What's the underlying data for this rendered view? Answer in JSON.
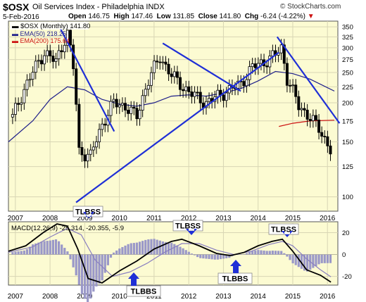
{
  "header": {
    "symbol": "$OSX",
    "name": "Oil Services Index - Philadelphia",
    "exchange": "INDX",
    "date": "5-Feb-2016",
    "open_label": "Open",
    "open": "146.75",
    "high_label": "High",
    "high": "147.46",
    "low_label": "Low",
    "low": "131.85",
    "close_label": "Close",
    "close": "141.80",
    "chg_label": "Chg",
    "chg": "-6.24 (-4.22%)",
    "logo": "© StockCharts.com"
  },
  "legend": {
    "price": "$OSX (Monthly) 141.80",
    "ema50": "EMA(50) 218.25",
    "ema200": "EMA(200) 175.64",
    "macd": "MACD(12,26,9) -25.314, -20.355, -5.9"
  },
  "annotations": [
    "TLBSS",
    "TLBSS",
    "TLBSS",
    "TLBBS",
    "TLBBS"
  ],
  "colors": {
    "panel_bg": "#fcfbd2",
    "trendline": "#1f2fd6",
    "ema50": "#1f1f8a",
    "ema200": "#cc1111",
    "histogram": "#9a98c8",
    "signal": "#8a7fc0"
  },
  "chart_data": [
    {
      "type": "candlestick",
      "title": "$OSX (Monthly) 141.80",
      "x_ticks": [
        "2007",
        "2008",
        "2009",
        "2010",
        "2011",
        "2012",
        "2013",
        "2014",
        "2015",
        "2016"
      ],
      "y_ticks": [
        "100",
        "125",
        "150",
        "175",
        "200",
        "225",
        "250",
        "275",
        "300",
        "325",
        "350"
      ],
      "y_scale": "log",
      "ylim": [
        90,
        365
      ],
      "grid": true,
      "x": [
        2006.92,
        2007.33,
        2007.83,
        2008.17,
        2008.5,
        2008.67,
        2008.83,
        2009.17,
        2009.5,
        2009.83,
        2010.17,
        2010.5,
        2010.83,
        2011.17,
        2011.5,
        2011.83,
        2012.17,
        2012.5,
        2012.83,
        2013.17,
        2013.5,
        2013.83,
        2014.17,
        2014.5,
        2014.67,
        2014.83,
        2015.17,
        2015.5,
        2015.83,
        2016.08
      ],
      "close": [
        180,
        230,
        290,
        270,
        335,
        260,
        140,
        135,
        170,
        200,
        195,
        180,
        235,
        280,
        245,
        225,
        210,
        200,
        210,
        220,
        230,
        260,
        270,
        285,
        300,
        240,
        195,
        180,
        160,
        142
      ],
      "series": [
        {
          "name": "EMA(50)",
          "value": 218.25,
          "x": [
            2006.8,
            2007.5,
            2008.0,
            2008.5,
            2009.0,
            2009.5,
            2010.0,
            2010.5,
            2011.0,
            2011.5,
            2012.0,
            2012.5,
            2013.0,
            2013.5,
            2014.0,
            2014.5,
            2015.0,
            2015.5,
            2016.2
          ],
          "values": [
            150,
            175,
            205,
            225,
            220,
            205,
            198,
            195,
            200,
            210,
            212,
            210,
            215,
            222,
            235,
            252,
            248,
            238,
            218
          ]
        },
        {
          "name": "EMA(200)",
          "value": 175.64,
          "x": [
            2014.6,
            2015.0,
            2015.5,
            2016.2
          ],
          "values": [
            168,
            172,
            175,
            176
          ]
        }
      ],
      "trendlines": [
        {
          "x": [
            2008.3,
            2009.85
          ],
          "y": [
            345,
            162
          ]
        },
        {
          "x": [
            2008.75,
            2014.6
          ],
          "y": [
            96,
            290
          ]
        },
        {
          "x": [
            2011.25,
            2013.5
          ],
          "y": [
            310,
            218
          ]
        },
        {
          "x": [
            2014.55,
            2016.35
          ],
          "y": [
            325,
            172
          ]
        }
      ]
    },
    {
      "type": "line",
      "title": "MACD(12,26,9) -25.314, -20.355, -5.9",
      "x_ticks": [
        "2007",
        "2008",
        "2009",
        "2010",
        "2011",
        "2012",
        "2013",
        "2014",
        "2015",
        "2016"
      ],
      "y_ticks": [
        "20",
        "0",
        "-20"
      ],
      "ylim": [
        -28,
        30
      ],
      "grid": true,
      "series": [
        {
          "name": "MACD",
          "x": [
            2006.8,
            2007.3,
            2007.8,
            2008.2,
            2008.5,
            2008.8,
            2009.1,
            2009.5,
            2010.0,
            2010.5,
            2011.0,
            2011.5,
            2011.8,
            2012.3,
            2012.8,
            2013.2,
            2013.6,
            2014.0,
            2014.4,
            2014.7,
            2015.0,
            2015.4,
            2015.8,
            2016.1
          ],
          "values": [
            3,
            8,
            20,
            28,
            26,
            5,
            -22,
            -26,
            -15,
            -6,
            5,
            12,
            14,
            8,
            1,
            -1,
            2,
            8,
            12,
            14,
            3,
            -14,
            -19,
            -25.3
          ]
        },
        {
          "name": "Signal",
          "x": [
            2006.8,
            2007.5,
            2008.0,
            2008.5,
            2008.9,
            2009.3,
            2009.8,
            2010.3,
            2010.8,
            2011.3,
            2011.8,
            2012.3,
            2012.8,
            2013.3,
            2013.8,
            2014.3,
            2014.7,
            2015.0,
            2015.4,
            2015.8,
            2016.1
          ],
          "values": [
            2,
            7,
            16,
            24,
            18,
            -5,
            -20,
            -16,
            -8,
            2,
            10,
            10,
            4,
            0,
            3,
            9,
            12,
            8,
            -4,
            -14,
            -20.4
          ]
        }
      ],
      "histogram_value": -5.9
    }
  ]
}
